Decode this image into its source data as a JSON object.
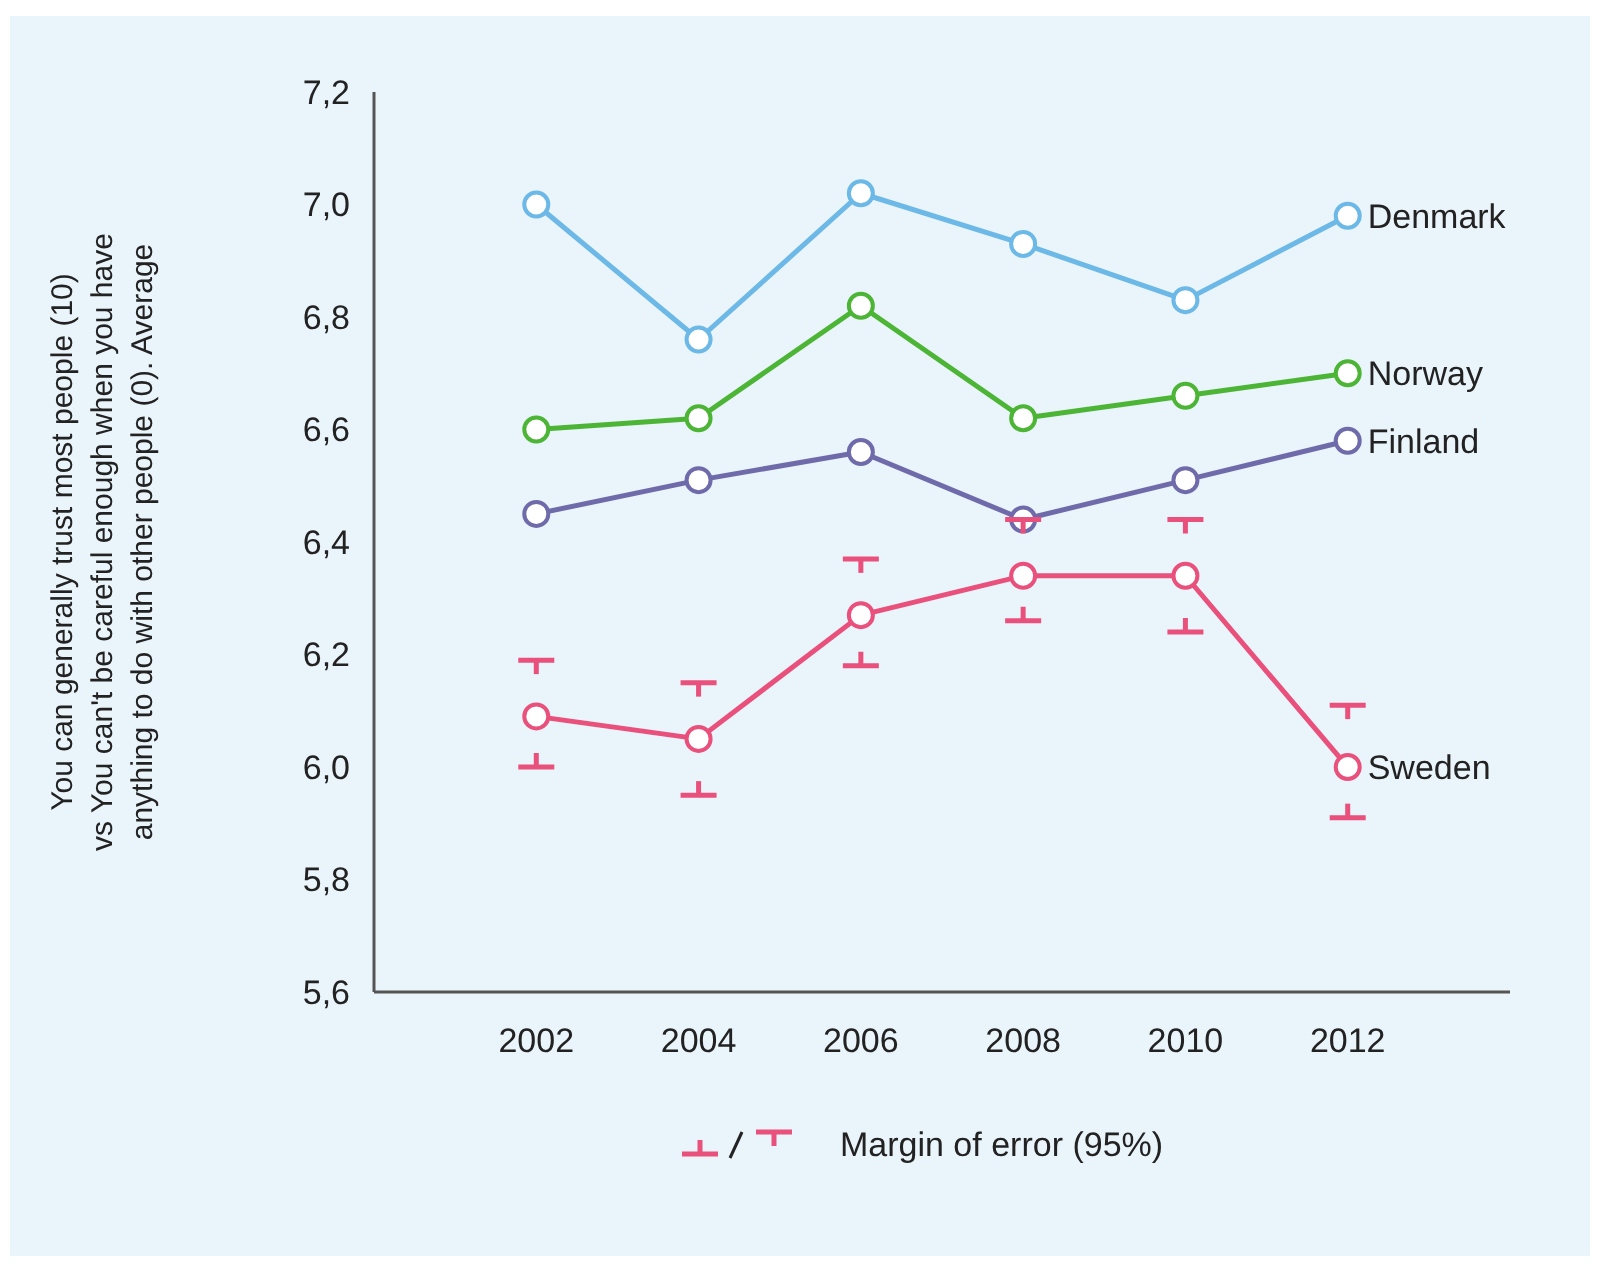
{
  "chart_data": {
    "type": "line",
    "ylabel": "You can generally trust most people (10)\nvs You can't be careful enough when you have\nanything to do with other people (0). Average",
    "x": [
      2002,
      2004,
      2006,
      2008,
      2010,
      2012
    ],
    "xlim": [
      2000,
      2014
    ],
    "xticks": [
      2002,
      2004,
      2006,
      2008,
      2010,
      2012
    ],
    "ylim": [
      5.6,
      7.2
    ],
    "yticks": [
      {
        "value": 5.6,
        "label": "5,6"
      },
      {
        "value": 5.8,
        "label": "5,8"
      },
      {
        "value": 6.0,
        "label": "6,0"
      },
      {
        "value": 6.2,
        "label": "6,2"
      },
      {
        "value": 6.4,
        "label": "6,4"
      },
      {
        "value": 6.6,
        "label": "6,6"
      },
      {
        "value": 6.8,
        "label": "6,8"
      },
      {
        "value": 7.0,
        "label": "7,0"
      },
      {
        "value": 7.2,
        "label": "7,2"
      }
    ],
    "marker": "circle",
    "line_style": "solid",
    "grid": false,
    "series": [
      {
        "name": "Denmark",
        "color": "#6cb8e6",
        "values": [
          7.0,
          6.76,
          7.02,
          6.93,
          6.83,
          6.98
        ]
      },
      {
        "name": "Norway",
        "color": "#4cb535",
        "values": [
          6.6,
          6.62,
          6.82,
          6.62,
          6.66,
          6.7
        ]
      },
      {
        "name": "Finland",
        "color": "#6f6bab",
        "values": [
          6.45,
          6.51,
          6.56,
          6.44,
          6.51,
          6.58
        ]
      },
      {
        "name": "Sweden",
        "color": "#e9507c",
        "values": [
          6.09,
          6.05,
          6.27,
          6.34,
          6.34,
          6.0
        ],
        "errors": [
          [
            6.0,
            6.19
          ],
          [
            5.95,
            6.15
          ],
          [
            6.18,
            6.37
          ],
          [
            6.26,
            6.44
          ],
          [
            6.24,
            6.44
          ],
          [
            5.91,
            6.11
          ]
        ]
      }
    ],
    "annotations": [
      "Margin of error (95%)"
    ]
  }
}
